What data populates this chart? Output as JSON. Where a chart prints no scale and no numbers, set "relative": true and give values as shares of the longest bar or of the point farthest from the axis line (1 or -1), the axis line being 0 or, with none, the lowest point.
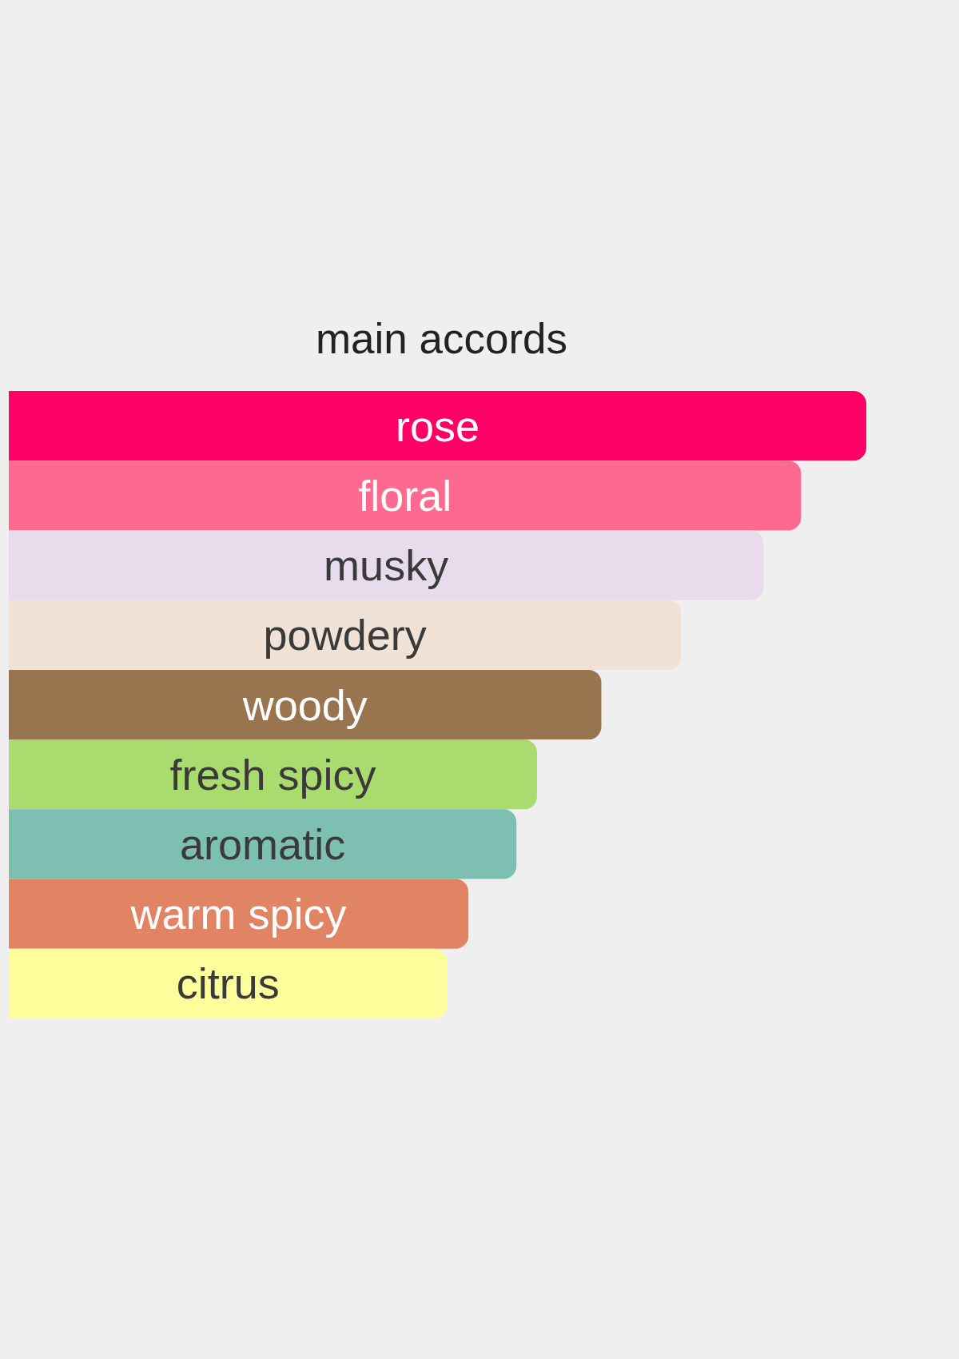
{
  "chart_data": {
    "type": "bar",
    "orientation": "horizontal",
    "relative": true,
    "title": "main accords",
    "categories": [
      "rose",
      "floral",
      "musky",
      "powdery",
      "woody",
      "fresh spicy",
      "aromatic",
      "warm spicy",
      "citrus"
    ],
    "values": [
      1,
      0.924,
      0.88,
      0.784,
      0.691,
      0.616,
      0.592,
      0.536,
      0.511
    ],
    "colors": [
      "#ff0066",
      "#fe6a8f",
      "#e8dcec",
      "#f0e2d6",
      "#99754f",
      "#aadb6e",
      "#7dc0b1",
      "#e08464",
      "#fdfd9b"
    ]
  }
}
